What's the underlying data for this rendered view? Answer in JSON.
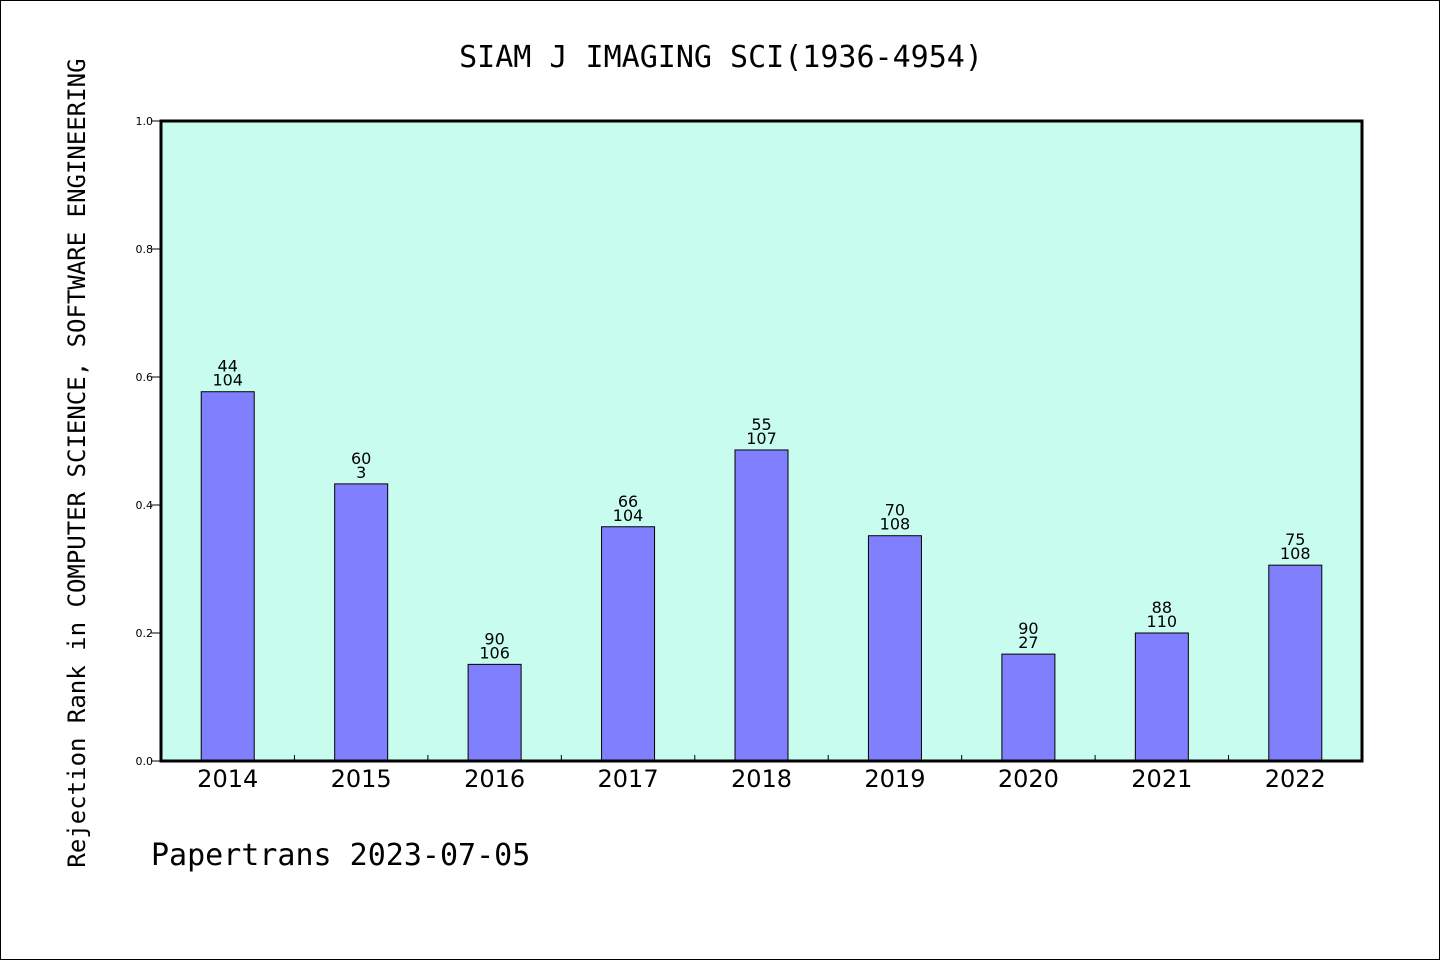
{
  "chart_data": {
    "type": "bar",
    "title": "SIAM J IMAGING SCI(1936-4954)",
    "ylabel": "Rejection Rank in COMPUTER SCIENCE, SOFTWARE ENGINEERING",
    "xlabel": "",
    "footer": "Papertrans 2023-07-05",
    "ylim": [
      0,
      1.0
    ],
    "yticks": [
      "0.0",
      "0.2",
      "0.4",
      "0.6",
      "0.8",
      "1.0"
    ],
    "categories": [
      "2014",
      "2015",
      "2016",
      "2017",
      "2018",
      "2019",
      "2020",
      "2021",
      "2022"
    ],
    "values": [
      0.577,
      0.433,
      0.151,
      0.366,
      0.486,
      0.352,
      0.167,
      0.2,
      0.306
    ],
    "label_top": [
      "44",
      "60",
      "90",
      "66",
      "55",
      "70",
      "90",
      "88",
      "75"
    ],
    "label_bottom": [
      "104",
      "3",
      "106",
      "104",
      "107",
      "108",
      "27",
      "110",
      "108"
    ],
    "grid": false,
    "colors": {
      "plot_background": "#c8fcee",
      "bar_fill": "#8080ff",
      "bar_stroke": "#000000",
      "axes": "#000000"
    }
  }
}
